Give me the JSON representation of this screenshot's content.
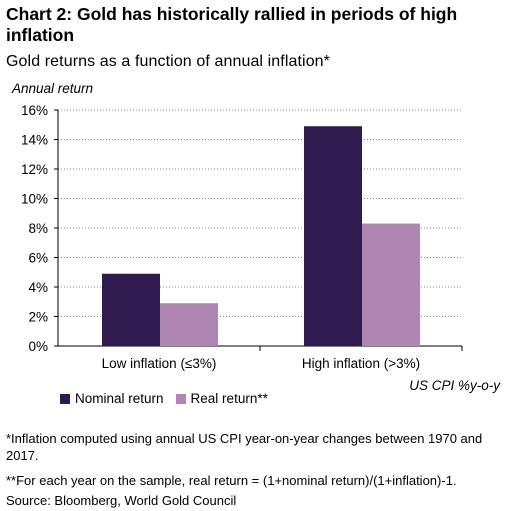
{
  "title": "Chart 2: Gold has historically rallied in periods of high inflation",
  "subtitle": "Gold returns as a function of annual inflation*",
  "chart_data": {
    "type": "bar",
    "categories": [
      "Low inflation (≤3%)",
      "High inflation (>3%)"
    ],
    "series": [
      {
        "name": "Nominal return",
        "values": [
          4.9,
          14.9
        ],
        "color": "#2e1a4f"
      },
      {
        "name": "Real return**",
        "values": [
          2.9,
          8.3
        ],
        "color": "#ad87b1"
      }
    ],
    "ylabel": "Annual return",
    "xlabel": "US CPI %y-o-y",
    "ylim": [
      0,
      16
    ],
    "yticks": [
      "0%",
      "2%",
      "4%",
      "6%",
      "8%",
      "10%",
      "12%",
      "14%",
      "16%"
    ],
    "grid": "horizontal dashed",
    "legend_position": "bottom-left"
  },
  "footnotes": {
    "note1": "*Inflation computed using annual US CPI year-on-year changes between 1970 and 2017.",
    "note2": "**For each year on the sample, real return = (1+nominal return)/(1+inflation)-1.",
    "source": "Source: Bloomberg, World Gold Council"
  }
}
